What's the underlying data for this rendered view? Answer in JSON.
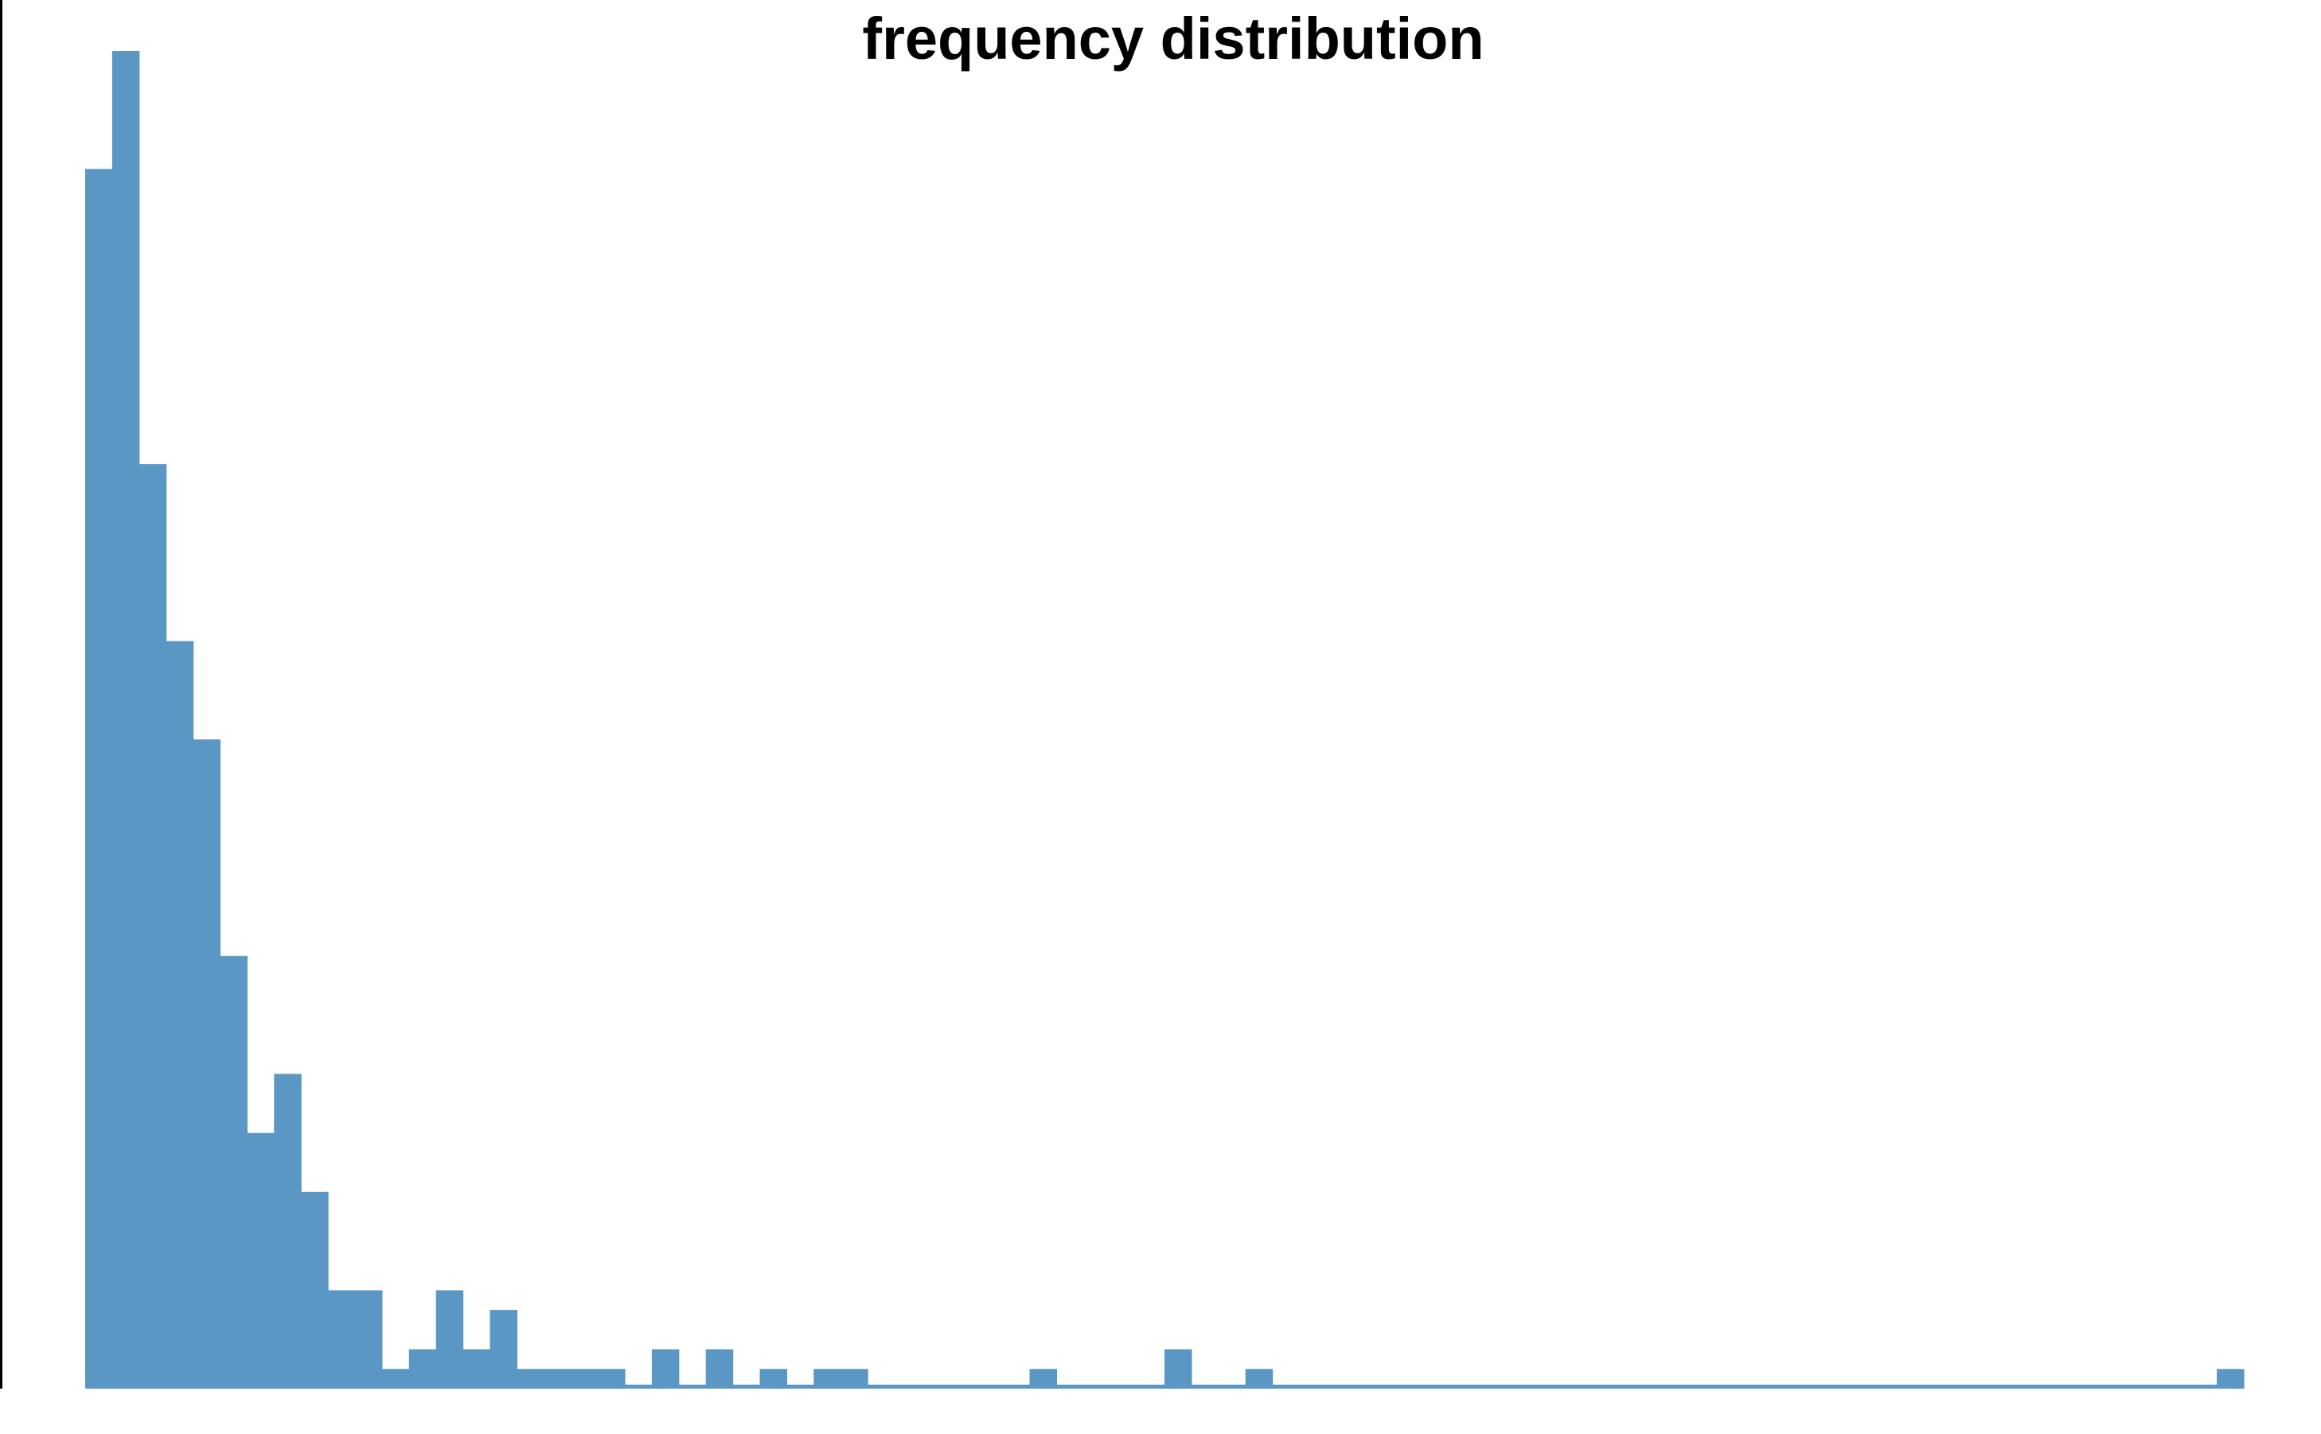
{
  "chart_data": {
    "type": "bar",
    "title": "frequency distribution",
    "xlabel": "",
    "ylabel": "",
    "x_tick_labels": [],
    "y_tick_labels": [],
    "grid": false,
    "legend": "none",
    "bar_color": "#5b97c4",
    "axis_color": "#000000",
    "bin_count": 80,
    "values": [
      62,
      68,
      47,
      38,
      33,
      22,
      13,
      16,
      10,
      5,
      5,
      1,
      2,
      5,
      2,
      4,
      1,
      1,
      1,
      1,
      0,
      2,
      0,
      2,
      0,
      1,
      0,
      1,
      1,
      0,
      0,
      0,
      0,
      0,
      0,
      1,
      0,
      0,
      0,
      0,
      2,
      0,
      0,
      1,
      0,
      0,
      0,
      0,
      0,
      0,
      0,
      0,
      0,
      0,
      0,
      0,
      0,
      0,
      0,
      0,
      0,
      0,
      0,
      0,
      0,
      0,
      0,
      0,
      0,
      0,
      0,
      0,
      0,
      0,
      0,
      0,
      0,
      0,
      0,
      1
    ],
    "ylim": [
      0,
      68
    ]
  }
}
